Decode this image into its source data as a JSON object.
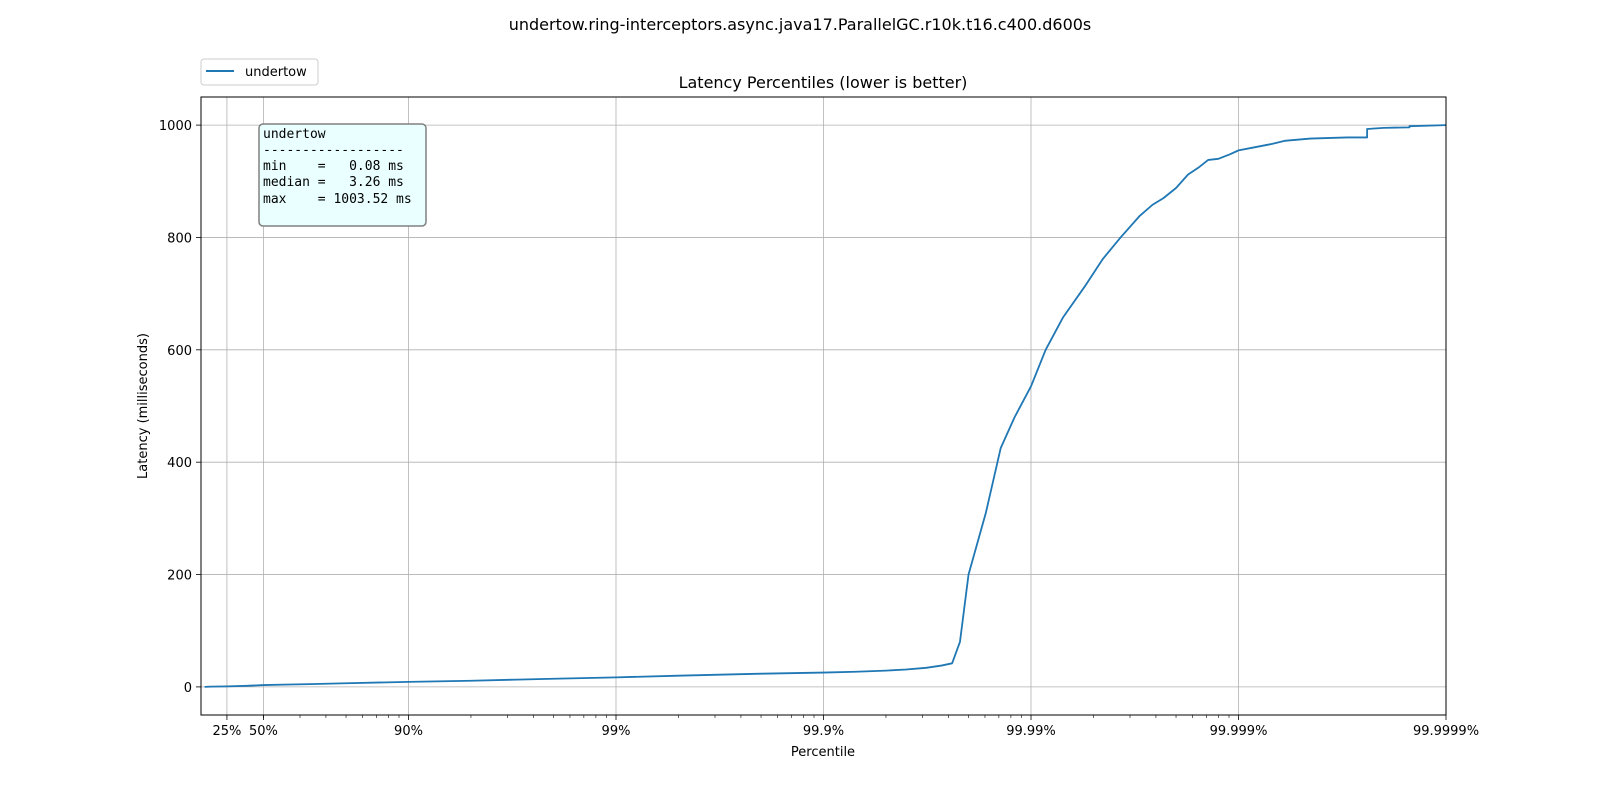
{
  "figure": {
    "suptitle": "undertow.ring-interceptors.async.java17.ParallelGC.r10k.t16.c400.d600s"
  },
  "legend": {
    "entries": [
      {
        "label": "undertow",
        "color": "#1f77b4"
      }
    ],
    "location": "upper-left-outside"
  },
  "stats_box": {
    "lines": [
      "undertow",
      "------------------",
      "min    =   0.08 ms",
      "median =   3.26 ms",
      "max    = 1003.52 ms"
    ],
    "background": "#eaffff"
  },
  "chart_data": {
    "type": "line",
    "title": "Latency Percentiles (lower is better)",
    "xlabel": "Percentile",
    "ylabel": "Latency (milliseconds)",
    "x_scale": "inverse-log (1/(1-p))",
    "xlim": [
      0.0,
      99.9999
    ],
    "ylim": [
      -50,
      1050
    ],
    "grid": true,
    "x_ticks": [
      {
        "value": 25,
        "label": "25%"
      },
      {
        "value": 50,
        "label": "50%"
      },
      {
        "value": 90,
        "label": "90%"
      },
      {
        "value": 99,
        "label": "99%"
      },
      {
        "value": 99.9,
        "label": "99.9%"
      },
      {
        "value": 99.99,
        "label": "99.99%"
      },
      {
        "value": 99.999,
        "label": "99.999%"
      },
      {
        "value": 99.9999,
        "label": "99.9999%"
      }
    ],
    "y_ticks": [
      0,
      200,
      400,
      600,
      800,
      1000
    ],
    "series": [
      {
        "name": "undertow",
        "color": "#1f77b4",
        "x": [
          4,
          10,
          25,
          40,
          50,
          60,
          70,
          80,
          90,
          95,
          97,
          98,
          99,
          99.5,
          99.7,
          99.8,
          99.9,
          99.93,
          99.95,
          99.96,
          99.968,
          99.973,
          99.976,
          99.978,
          99.98,
          99.9835,
          99.986,
          99.988,
          99.99,
          99.9915,
          99.993,
          99.9945,
          99.9955,
          99.9963,
          99.997,
          99.9974,
          99.9977,
          99.998,
          99.99825,
          99.99845,
          99.9986,
          99.99875,
          99.9989,
          99.999,
          99.99915,
          99.9993,
          99.9994,
          99.99955,
          99.9997,
          99.99976,
          99.99976,
          99.9998,
          99.99985,
          99.99985,
          99.9999
        ],
        "y": [
          0.08,
          0.5,
          1.0,
          2.0,
          3.26,
          4.0,
          5.0,
          6.5,
          9.0,
          11.0,
          13.0,
          14.5,
          17.0,
          20.0,
          22.0,
          23.5,
          25.5,
          27.0,
          29.0,
          31.0,
          34.0,
          38.0,
          42.0,
          80.0,
          200.0,
          310.0,
          425.0,
          480.0,
          535.0,
          600.0,
          658.0,
          713.0,
          762.0,
          800.0,
          838.0,
          858.0,
          870.0,
          888.0,
          912.0,
          925.0,
          938.0,
          940.0,
          948.0,
          955.0,
          960.0,
          966.0,
          972.0,
          976.0,
          978.0,
          978.0,
          993.0,
          995.0,
          996.0,
          998.0,
          1000.0
        ]
      }
    ]
  }
}
